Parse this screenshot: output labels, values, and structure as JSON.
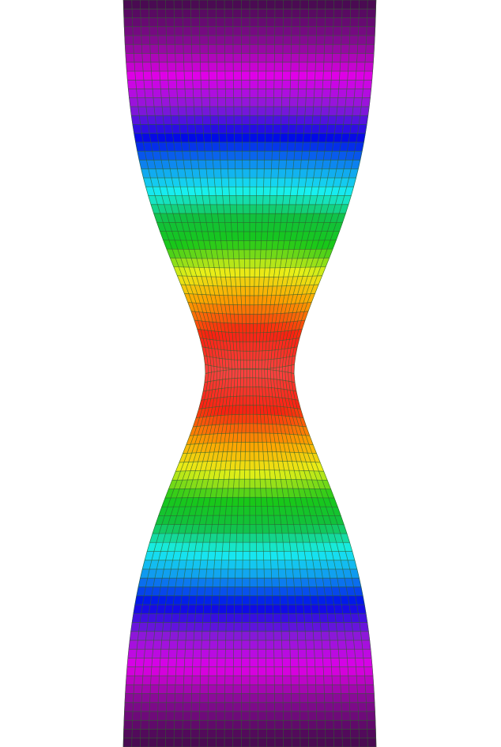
{
  "visualization": {
    "type": "finite-element-mesh-necking-contour",
    "background_color": "#ffffff",
    "mesh_line_color": "#2f5f2f",
    "mesh_columns": 30,
    "mesh_rows": 84,
    "colormap": [
      {
        "t": 0.0,
        "color": "#4a0a52"
      },
      {
        "t": 0.1,
        "color": "#8a0a98"
      },
      {
        "t": 0.18,
        "color": "#e000e8"
      },
      {
        "t": 0.26,
        "color": "#8a18d8"
      },
      {
        "t": 0.34,
        "color": "#0008e8"
      },
      {
        "t": 0.42,
        "color": "#10a0f0"
      },
      {
        "t": 0.48,
        "color": "#18f0f0"
      },
      {
        "t": 0.55,
        "color": "#10c040"
      },
      {
        "t": 0.62,
        "color": "#18c818"
      },
      {
        "t": 0.7,
        "color": "#e8f018"
      },
      {
        "t": 0.78,
        "color": "#ffa000"
      },
      {
        "t": 0.88,
        "color": "#ff2010"
      },
      {
        "t": 1.0,
        "color": "#ff4040"
      }
    ]
  }
}
